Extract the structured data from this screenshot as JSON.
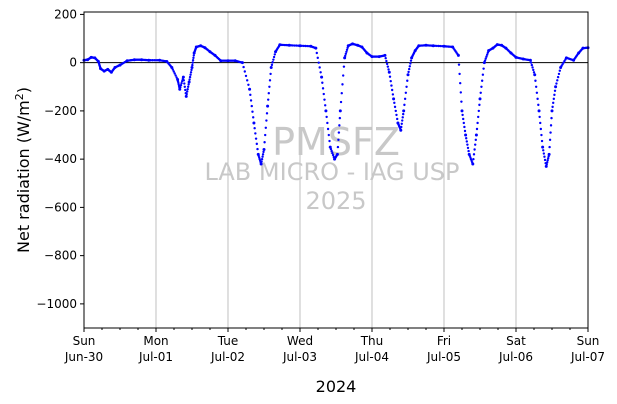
{
  "chart_data": {
    "type": "scatter",
    "title": "",
    "xlabel": "2024",
    "ylabel": "Net radiation (W/m²)",
    "ylabel_main": "Net radiation (W/m",
    "ylabel_sup": "2",
    "ylabel_close": ")",
    "ylim": [
      -1100,
      210
    ],
    "xlim_days": [
      0,
      7
    ],
    "yticks": [
      200,
      0,
      -200,
      -400,
      -600,
      -800,
      -1000
    ],
    "ytick_labels": [
      "200",
      "0",
      "−200",
      "−400",
      "−600",
      "−800",
      "−1000"
    ],
    "xticks": [
      {
        "day": 0,
        "weekday": "Sun",
        "date": "Jun-30"
      },
      {
        "day": 1,
        "weekday": "Mon",
        "date": "Jul-01"
      },
      {
        "day": 2,
        "weekday": "Tue",
        "date": "Jul-02"
      },
      {
        "day": 3,
        "weekday": "Wed",
        "date": "Jul-03"
      },
      {
        "day": 4,
        "weekday": "Thu",
        "date": "Jul-04"
      },
      {
        "day": 5,
        "weekday": "Fri",
        "date": "Jul-05"
      },
      {
        "day": 6,
        "weekday": "Sat",
        "date": "Jul-06"
      },
      {
        "day": 7,
        "weekday": "Sun",
        "date": "Jul-07"
      }
    ],
    "grid": "vertical",
    "zero_line": true,
    "marker_color": "#0000ff",
    "series": [
      {
        "points": [
          [
            0.0,
            10
          ],
          [
            0.05,
            12
          ],
          [
            0.1,
            22
          ],
          [
            0.15,
            20
          ],
          [
            0.2,
            5
          ],
          [
            0.23,
            -25
          ],
          [
            0.28,
            -35
          ],
          [
            0.33,
            -28
          ],
          [
            0.38,
            -40
          ],
          [
            0.43,
            -20
          ],
          [
            0.5,
            -10
          ],
          [
            0.6,
            8
          ],
          [
            0.7,
            12
          ],
          [
            0.8,
            12
          ],
          [
            0.9,
            10
          ],
          [
            1.05,
            10
          ],
          [
            1.15,
            5
          ],
          [
            1.22,
            -20
          ],
          [
            1.3,
            -70
          ],
          [
            1.33,
            -110
          ],
          [
            1.38,
            -60
          ],
          [
            1.42,
            -140
          ],
          [
            1.46,
            -80
          ],
          [
            1.5,
            -20
          ],
          [
            1.53,
            40
          ],
          [
            1.56,
            65
          ],
          [
            1.62,
            70
          ],
          [
            1.68,
            62
          ],
          [
            1.75,
            45
          ],
          [
            1.82,
            30
          ],
          [
            1.9,
            8
          ],
          [
            2.0,
            8
          ],
          [
            2.1,
            8
          ],
          [
            2.2,
            0
          ],
          [
            2.3,
            -110
          ],
          [
            2.36,
            -250
          ],
          [
            2.42,
            -380
          ],
          [
            2.46,
            -420
          ],
          [
            2.5,
            -360
          ],
          [
            2.55,
            -180
          ],
          [
            2.6,
            -20
          ],
          [
            2.66,
            45
          ],
          [
            2.72,
            74
          ],
          [
            2.85,
            72
          ],
          [
            3.0,
            70
          ],
          [
            3.15,
            68
          ],
          [
            3.22,
            60
          ],
          [
            3.3,
            -60
          ],
          [
            3.36,
            -200
          ],
          [
            3.42,
            -350
          ],
          [
            3.48,
            -400
          ],
          [
            3.52,
            -380
          ],
          [
            3.56,
            -200
          ],
          [
            3.62,
            20
          ],
          [
            3.67,
            70
          ],
          [
            3.73,
            78
          ],
          [
            3.8,
            72
          ],
          [
            3.86,
            65
          ],
          [
            3.93,
            40
          ],
          [
            4.0,
            25
          ],
          [
            4.1,
            25
          ],
          [
            4.18,
            30
          ],
          [
            4.24,
            -40
          ],
          [
            4.3,
            -150
          ],
          [
            4.36,
            -250
          ],
          [
            4.4,
            -280
          ],
          [
            4.44,
            -200
          ],
          [
            4.5,
            -50
          ],
          [
            4.55,
            20
          ],
          [
            4.6,
            50
          ],
          [
            4.65,
            70
          ],
          [
            4.75,
            72
          ],
          [
            4.85,
            70
          ],
          [
            5.0,
            68
          ],
          [
            5.12,
            65
          ],
          [
            5.2,
            30
          ],
          [
            5.25,
            -200
          ],
          [
            5.3,
            -300
          ],
          [
            5.35,
            -380
          ],
          [
            5.4,
            -420
          ],
          [
            5.45,
            -300
          ],
          [
            5.5,
            -150
          ],
          [
            5.56,
            0
          ],
          [
            5.62,
            50
          ],
          [
            5.68,
            60
          ],
          [
            5.74,
            75
          ],
          [
            5.8,
            72
          ],
          [
            5.86,
            60
          ],
          [
            5.93,
            40
          ],
          [
            6.0,
            22
          ],
          [
            6.1,
            15
          ],
          [
            6.2,
            10
          ],
          [
            6.26,
            -50
          ],
          [
            6.32,
            -200
          ],
          [
            6.37,
            -350
          ],
          [
            6.42,
            -430
          ],
          [
            6.46,
            -380
          ],
          [
            6.5,
            -200
          ],
          [
            6.55,
            -100
          ],
          [
            6.62,
            -20
          ],
          [
            6.7,
            20
          ],
          [
            6.8,
            10
          ],
          [
            6.87,
            40
          ],
          [
            6.93,
            60
          ],
          [
            7.0,
            62
          ]
        ]
      }
    ]
  },
  "watermark": {
    "line1": "PMSFZ",
    "line2": "LAB MICRO - IAG USP",
    "line3": "2025"
  }
}
